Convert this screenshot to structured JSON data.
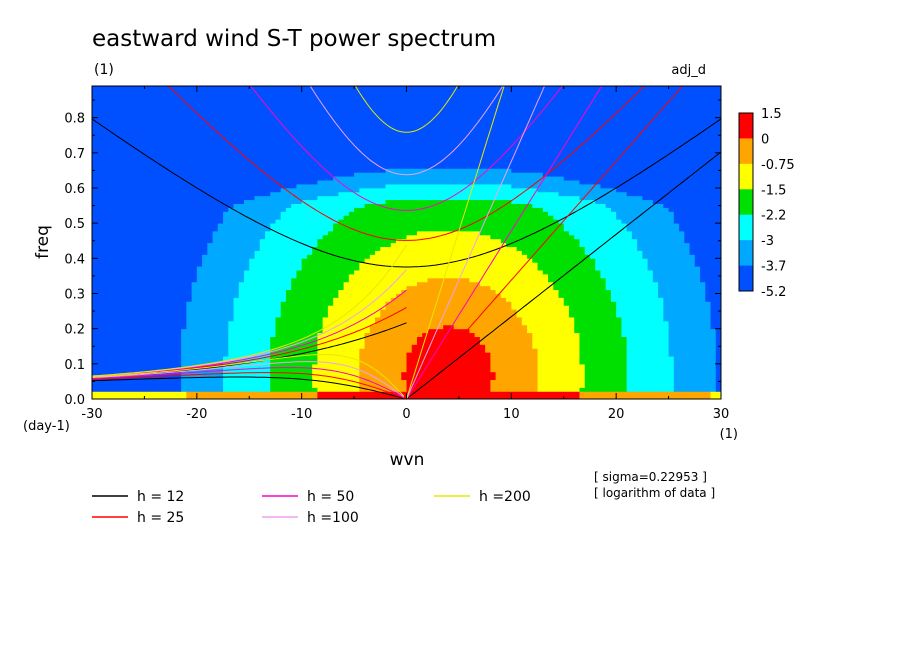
{
  "chart_data": {
    "type": "heatmap",
    "title": "eastward wind S-T power spectrum",
    "subtitle_left": "(1)",
    "subtitle_right": "adj_d",
    "xlabel": "wvn",
    "ylabel": "freq",
    "x_unit": "(1)",
    "y_unit": "(day-1)",
    "xlim": [
      -30,
      30
    ],
    "ylim": [
      0,
      0.89
    ],
    "x_ticks": [
      -30,
      -20,
      -10,
      0,
      10,
      20,
      30
    ],
    "x_tick_labels": [
      "-30",
      "-20",
      "-10",
      "0",
      "10",
      "20",
      "30"
    ],
    "y_ticks": [
      0.0,
      0.1,
      0.2,
      0.3,
      0.4,
      0.5,
      0.6,
      0.7,
      0.8
    ],
    "y_tick_labels": [
      "0.0",
      "0.1",
      "0.2",
      "0.3",
      "0.4",
      "0.5",
      "0.6",
      "0.7",
      "0.8"
    ],
    "colorbar": {
      "levels": [
        "1.5",
        "0",
        "-0.75",
        "-1.5",
        "-2.2",
        "-3",
        "-3.7",
        "-5.2"
      ],
      "colors": [
        "#ff0000",
        "#ffa500",
        "#ffff00",
        "#00e000",
        "#00ffff",
        "#00a8ff",
        "#0050ff"
      ]
    },
    "field_peak": {
      "x": 4,
      "y": 0.07
    },
    "dispersion_curves": [
      {
        "label": "h = 12",
        "h": 12,
        "color": "#000000"
      },
      {
        "label": "h = 25",
        "h": 25,
        "color": "#ff0000"
      },
      {
        "label": "h = 50",
        "h": 50,
        "color": "#ff00c8"
      },
      {
        "label": "h =100",
        "h": 100,
        "color": "#f0a0f0"
      },
      {
        "label": "h =200",
        "h": 200,
        "color": "#e8e800"
      }
    ],
    "notes": [
      "[ sigma=0.22953 ]",
      "[ logarithm of data ]"
    ]
  }
}
